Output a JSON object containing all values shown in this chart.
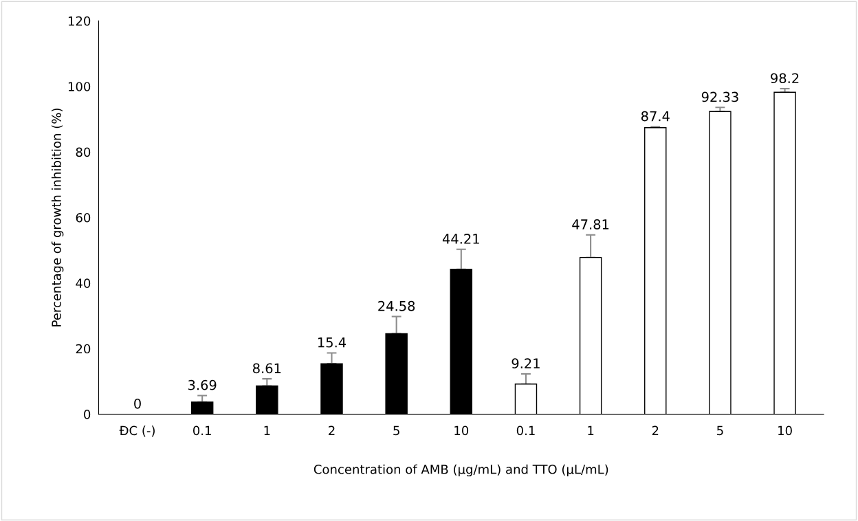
{
  "chart_data": {
    "type": "bar",
    "xlabel": "Concentration of AMB (µg/mL) and TTO (µL/mL)",
    "ylabel": "Percentage of growth inhibition (%)",
    "categories": [
      "ĐC (-)",
      "0.1",
      "1",
      "2",
      "5",
      "10",
      "0.1",
      "1",
      "2",
      "5",
      "10"
    ],
    "values": [
      0,
      3.69,
      8.61,
      15.4,
      24.58,
      44.21,
      9.21,
      47.81,
      87.4,
      92.33,
      98.2
    ],
    "colors": [
      "#000000",
      "#000000",
      "#000000",
      "#000000",
      "#000000",
      "#000000",
      "#ffffff",
      "#ffffff",
      "#ffffff",
      "#ffffff",
      "#ffffff"
    ],
    "errors": [
      null,
      [
        3.69,
        5.7
      ],
      [
        8.61,
        10.8
      ],
      [
        15.4,
        18.7
      ],
      [
        24.58,
        29.8
      ],
      [
        44.21,
        50.3
      ],
      [
        9.21,
        12.3
      ],
      [
        47.81,
        54.7
      ],
      [
        87.4,
        87.7
      ],
      [
        92.33,
        93.6
      ],
      [
        98.2,
        99.3
      ]
    ],
    "data_labels": true,
    "ylim": [
      0,
      120
    ],
    "yticks": [
      0,
      20,
      40,
      60,
      80,
      100,
      120
    ],
    "grid": false
  }
}
